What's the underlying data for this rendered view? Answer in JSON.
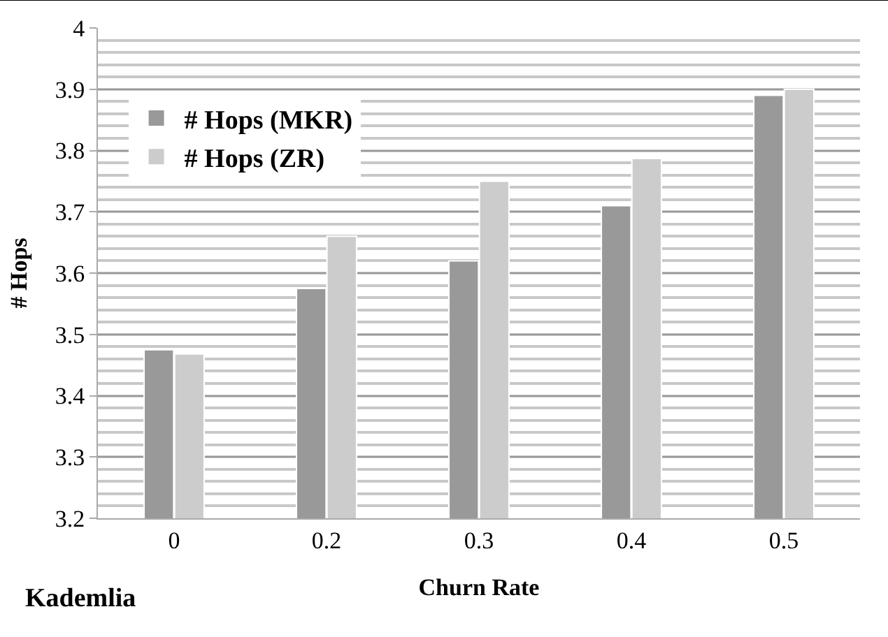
{
  "chart_data": {
    "type": "bar",
    "xlabel": "Churn Rate",
    "ylabel": "# Hops",
    "annotations": [
      "Kademlia"
    ],
    "categories": [
      "0",
      "0.2",
      "0.3",
      "0.4",
      "0.5"
    ],
    "series": [
      {
        "name": "# Hops (MKR)",
        "color": "#999999",
        "values": [
          3.475,
          3.575,
          3.62,
          3.71,
          3.89
        ]
      },
      {
        "name": "# Hops (ZR)",
        "color": "#cccccc",
        "values": [
          3.468,
          3.66,
          3.75,
          3.787,
          3.9
        ]
      }
    ],
    "ylim": [
      3.2,
      4
    ],
    "yticks": [
      3.2,
      3.3,
      3.4,
      3.5,
      3.6,
      3.7,
      3.8,
      3.9,
      4
    ],
    "grid": "y",
    "legend": "top left"
  }
}
